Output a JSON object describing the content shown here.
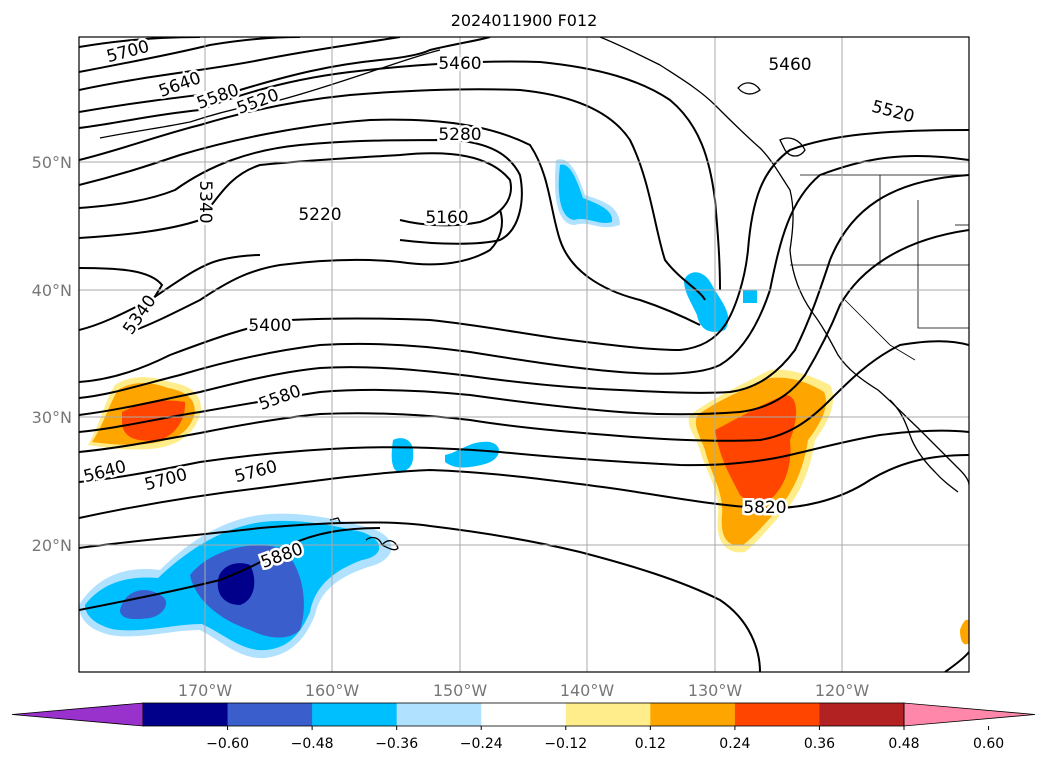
{
  "title": "2024011900 F012",
  "lat_labels": [
    "50°N",
    "40°N",
    "30°N",
    "20°N"
  ],
  "lon_labels": [
    "170°W",
    "160°W",
    "150°W",
    "140°W",
    "130°W",
    "120°W"
  ],
  "colorbar": {
    "ticks": [
      "−0.60",
      "−0.48",
      "−0.36",
      "−0.24",
      "−0.12",
      "0.12",
      "0.24",
      "0.36",
      "0.48",
      "0.60"
    ],
    "colors": [
      "#9932cc",
      "#00008b",
      "#3a5fcd",
      "#00bfff",
      "#b0e2ff",
      "#ffffff",
      "#ffec8b",
      "#ffa500",
      "#ff4500",
      "#b22222",
      "#ff88aa"
    ]
  },
  "contour_labels": [
    "5700",
    "5640",
    "5580",
    "5520",
    "5460",
    "5280",
    "5340",
    "5220",
    "5160",
    "5460",
    "5520",
    "5340",
    "5400",
    "5580",
    "5640",
    "5700",
    "5760",
    "5880",
    "5820"
  ],
  "colors": {
    "contour": "#000000",
    "grid": "#999999",
    "coast": "#000000"
  }
}
